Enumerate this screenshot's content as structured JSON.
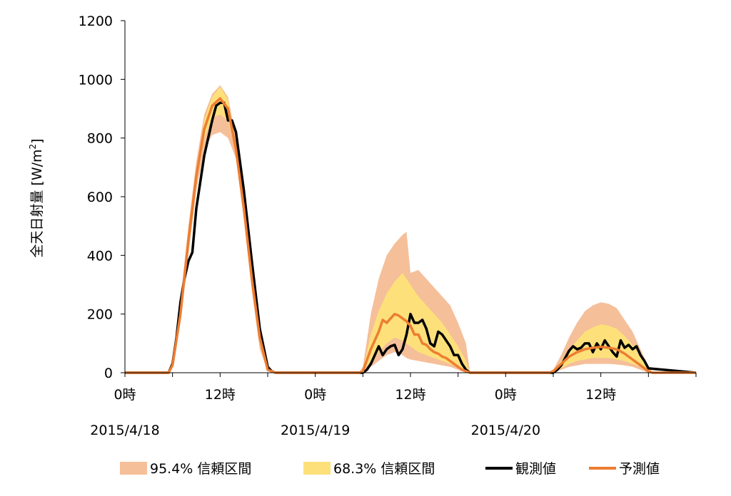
{
  "chart_data": {
    "type": "area",
    "ylabel": "全天日射量 [W/m",
    "ylabel_sup": "2",
    "ylabel_close": "]",
    "ylim": [
      0,
      1200
    ],
    "xlim": [
      0,
      72
    ],
    "yticks": [
      "0",
      "200",
      "400",
      "600",
      "800",
      "1000",
      "1200"
    ],
    "xticks": [
      {
        "x": 0,
        "label": "0時"
      },
      {
        "x": 12,
        "label": "12時"
      },
      {
        "x": 24,
        "label": "0時"
      },
      {
        "x": 36,
        "label": "12時"
      },
      {
        "x": 48,
        "label": "0時"
      },
      {
        "x": 60,
        "label": "12時"
      }
    ],
    "date_labels": [
      {
        "x": 0,
        "label": "2015/4/18"
      },
      {
        "x": 24,
        "label": "2015/4/19"
      },
      {
        "x": 48,
        "label": "2015/4/20"
      }
    ],
    "grid": false,
    "legend_position": "bottom",
    "colors": {
      "ci95": "#f5bf99",
      "ci68": "#fde07a",
      "observed": "#000000",
      "forecast": "#ed7d31"
    },
    "series": [
      {
        "name": "95.4% 信頼区間",
        "kind": "band",
        "x": [
          0,
          5.5,
          6,
          7,
          8,
          9,
          10,
          11,
          12,
          13,
          14,
          15,
          16,
          17,
          18,
          19,
          24,
          29.5,
          30,
          31,
          32,
          33,
          34,
          35,
          35.5,
          36,
          37,
          38,
          39,
          40,
          41,
          42,
          43,
          43.5,
          48,
          53.5,
          54,
          55,
          56,
          57,
          58,
          59,
          60,
          61,
          62,
          63,
          64,
          65,
          66,
          66.5,
          72
        ],
        "upper": [
          0,
          0,
          50,
          250,
          500,
          720,
          880,
          950,
          980,
          940,
          800,
          600,
          350,
          150,
          20,
          0,
          0,
          0,
          20,
          200,
          320,
          400,
          440,
          470,
          480,
          340,
          350,
          320,
          290,
          260,
          230,
          170,
          100,
          0,
          0,
          0,
          10,
          60,
          120,
          170,
          210,
          230,
          240,
          235,
          220,
          180,
          140,
          80,
          20,
          0,
          0
        ],
        "lower": [
          0,
          0,
          20,
          170,
          400,
          620,
          760,
          810,
          820,
          800,
          730,
          520,
          280,
          80,
          5,
          0,
          0,
          0,
          0,
          20,
          40,
          60,
          70,
          60,
          50,
          45,
          40,
          35,
          30,
          25,
          20,
          10,
          0,
          0,
          0,
          0,
          0,
          10,
          20,
          25,
          30,
          30,
          30,
          30,
          28,
          25,
          20,
          10,
          0,
          0,
          0
        ]
      },
      {
        "name": "68.3% 信頼区間",
        "kind": "band",
        "x": [
          0,
          5.5,
          6,
          7,
          8,
          9,
          10,
          11,
          12,
          13,
          14,
          15,
          16,
          17,
          18,
          19,
          24,
          29.5,
          30,
          31,
          32,
          33,
          34,
          35,
          36,
          37,
          38,
          39,
          40,
          41,
          42,
          43,
          43.5,
          48,
          53.5,
          54,
          55,
          56,
          57,
          58,
          59,
          60,
          61,
          62,
          63,
          64,
          65,
          66,
          66.5,
          72
        ],
        "upper": [
          0,
          0,
          40,
          230,
          470,
          690,
          860,
          940,
          975,
          930,
          780,
          580,
          330,
          130,
          15,
          0,
          0,
          0,
          10,
          130,
          210,
          270,
          310,
          340,
          300,
          260,
          230,
          200,
          170,
          130,
          90,
          40,
          0,
          0,
          0,
          5,
          40,
          80,
          110,
          140,
          155,
          165,
          160,
          150,
          125,
          95,
          55,
          15,
          0,
          0
        ],
        "lower": [
          0,
          0,
          30,
          190,
          430,
          650,
          800,
          870,
          880,
          860,
          750,
          550,
          300,
          100,
          10,
          0,
          0,
          0,
          5,
          40,
          70,
          100,
          120,
          110,
          90,
          70,
          60,
          50,
          40,
          30,
          20,
          5,
          0,
          0,
          0,
          0,
          15,
          30,
          40,
          45,
          50,
          50,
          50,
          45,
          40,
          30,
          20,
          5,
          0,
          0
        ]
      },
      {
        "name": "観測値",
        "kind": "line",
        "x": [
          0,
          5.5,
          6,
          6.5,
          7,
          7.5,
          8,
          8.5,
          9,
          10,
          11,
          11.5,
          12,
          12.5,
          13,
          13.5,
          14,
          15,
          16,
          17,
          18,
          18.5,
          19,
          24,
          29.5,
          30,
          30.5,
          31,
          31.5,
          32,
          32.5,
          33,
          33.5,
          34,
          34.5,
          35,
          35.5,
          36,
          36.5,
          37,
          37.5,
          38,
          38.5,
          39,
          39.5,
          40,
          40.5,
          41,
          41.5,
          42,
          42.5,
          43,
          43.5,
          48,
          53.5,
          54,
          54.5,
          55,
          55.5,
          56,
          56.5,
          57,
          57.5,
          58,
          58.5,
          59,
          59.5,
          60,
          60.5,
          61,
          61.5,
          62,
          62.5,
          63,
          63.5,
          64,
          64.5,
          65,
          65.5,
          66,
          72
        ],
        "values": [
          0,
          0,
          30,
          120,
          240,
          320,
          380,
          410,
          560,
          740,
          860,
          910,
          920,
          920,
          860,
          860,
          820,
          620,
          380,
          150,
          20,
          5,
          0,
          0,
          0,
          0,
          10,
          30,
          60,
          90,
          60,
          80,
          90,
          95,
          60,
          80,
          130,
          200,
          170,
          170,
          180,
          150,
          100,
          90,
          140,
          130,
          110,
          90,
          60,
          60,
          30,
          10,
          0,
          0,
          0,
          0,
          10,
          25,
          50,
          75,
          90,
          80,
          85,
          100,
          100,
          70,
          100,
          80,
          110,
          90,
          70,
          55,
          110,
          85,
          95,
          80,
          90,
          60,
          40,
          15,
          0
        ],
        "color": "#000000"
      },
      {
        "name": "予測値",
        "kind": "line",
        "x": [
          0,
          5.5,
          6,
          7,
          8,
          9,
          10,
          11,
          12,
          13,
          14,
          15,
          16,
          17,
          18,
          19,
          24,
          29.5,
          30,
          31,
          32,
          32.5,
          33,
          33.5,
          34,
          34.5,
          35,
          35.5,
          36,
          36.5,
          37,
          37.5,
          38,
          38.5,
          39,
          39.5,
          40,
          40.5,
          41,
          41.5,
          42,
          42.5,
          43,
          43.5,
          48,
          53.5,
          54,
          55,
          56,
          57,
          58,
          59,
          60,
          61,
          62,
          63,
          64,
          65,
          66,
          66.5,
          72
        ],
        "values": [
          0,
          0,
          25,
          200,
          450,
          670,
          830,
          910,
          935,
          900,
          760,
          560,
          320,
          120,
          10,
          0,
          0,
          0,
          5,
          80,
          140,
          180,
          170,
          185,
          200,
          195,
          185,
          175,
          160,
          130,
          130,
          100,
          95,
          80,
          70,
          65,
          55,
          50,
          40,
          30,
          20,
          10,
          5,
          0,
          0,
          0,
          5,
          30,
          55,
          70,
          80,
          85,
          88,
          85,
          80,
          65,
          45,
          25,
          5,
          0,
          0
        ],
        "color": "#ed7d31"
      }
    ],
    "legend": [
      {
        "label": "95.4% 信頼区間",
        "kind": "swatch",
        "color": "#f5bf99"
      },
      {
        "label": "68.3% 信頼区間",
        "kind": "swatch",
        "color": "#fde07a"
      },
      {
        "label": "観測値",
        "kind": "line",
        "color": "#000000"
      },
      {
        "label": "予測値",
        "kind": "line",
        "color": "#ed7d31"
      }
    ]
  }
}
